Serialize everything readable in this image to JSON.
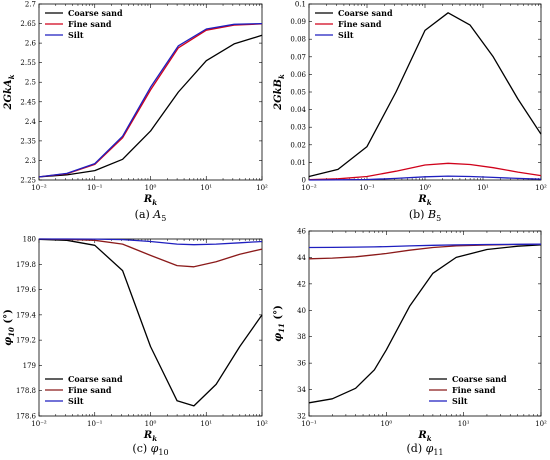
{
  "figure": {
    "legend_labels": [
      "Coarse sand",
      "Fine sand",
      "Silt"
    ],
    "series_colors": [
      "#000000",
      "#d0021b",
      "#1f1fbf"
    ]
  },
  "chart_data": [
    {
      "type": "line",
      "caption": "(a) A5",
      "xlabel": "R_k",
      "ylabel": "2GkA_k",
      "xscale": "log",
      "xlim": [
        0.01,
        100
      ],
      "ylim": [
        2.25,
        2.7
      ],
      "yticks": [
        2.25,
        2.3,
        2.35,
        2.4,
        2.45,
        2.5,
        2.55,
        2.6,
        2.65,
        2.7
      ],
      "ytick_labels": [
        "2.25",
        "2.3",
        "2.35",
        "2.4",
        "2.45",
        "2.5",
        "2.55",
        "2.6",
        "2.65",
        "2.7"
      ],
      "xticks": [
        0.01,
        0.1,
        1,
        10,
        100
      ],
      "xtick_labels": [
        "10⁻²",
        "10⁻¹",
        "10⁰",
        "10¹",
        "10²"
      ],
      "legend_position": "top-left",
      "x": [
        0.01,
        0.0316,
        0.1,
        0.316,
        1,
        3.16,
        10,
        31.6,
        100
      ],
      "series": [
        {
          "name": "Coarse sand",
          "color": "#000000",
          "values": [
            2.258,
            2.263,
            2.274,
            2.303,
            2.375,
            2.475,
            2.555,
            2.598,
            2.62
          ]
        },
        {
          "name": "Fine sand",
          "color": "#d0021b",
          "values": [
            2.258,
            2.266,
            2.29,
            2.358,
            2.48,
            2.588,
            2.633,
            2.646,
            2.649
          ]
        },
        {
          "name": "Silt",
          "color": "#1f1fbf",
          "values": [
            2.258,
            2.267,
            2.292,
            2.362,
            2.487,
            2.593,
            2.636,
            2.648,
            2.65
          ]
        }
      ]
    },
    {
      "type": "line",
      "caption": "(b) B5",
      "xlabel": "R_k",
      "ylabel": "2GkB_k",
      "xscale": "log",
      "xlim": [
        0.01,
        100
      ],
      "ylim": [
        0,
        0.1
      ],
      "yticks": [
        0,
        0.01,
        0.02,
        0.03,
        0.04,
        0.05,
        0.06,
        0.07,
        0.08,
        0.09,
        0.1
      ],
      "ytick_labels": [
        "0",
        "0.01",
        "0.02",
        "0.03",
        "0.04",
        "0.05",
        "0.06",
        "0.07",
        "0.08",
        "0.09",
        "0.1"
      ],
      "xticks": [
        0.01,
        0.1,
        1,
        10,
        100
      ],
      "xtick_labels": [
        "10⁻²",
        "10⁻¹",
        "10⁰",
        "10¹",
        "10²"
      ],
      "legend_position": "top-left",
      "x": [
        0.01,
        0.0316,
        0.1,
        0.316,
        1,
        2.5,
        6,
        15,
        40,
        100
      ],
      "series": [
        {
          "name": "Coarse sand",
          "color": "#000000",
          "values": [
            0.002,
            0.006,
            0.019,
            0.05,
            0.085,
            0.095,
            0.088,
            0.07,
            0.046,
            0.026
          ]
        },
        {
          "name": "Fine sand",
          "color": "#d0021b",
          "values": [
            0.0002,
            0.0007,
            0.002,
            0.005,
            0.0085,
            0.0095,
            0.0088,
            0.007,
            0.0045,
            0.0025
          ]
        },
        {
          "name": "Silt",
          "color": "#1f1fbf",
          "values": [
            2e-05,
            0.0001,
            0.0003,
            0.0009,
            0.0018,
            0.0022,
            0.002,
            0.0015,
            0.0009,
            0.0005
          ]
        }
      ]
    },
    {
      "type": "line",
      "caption": "(c) φ10",
      "xlabel": "R_k",
      "ylabel": "φ10 (°)",
      "xscale": "log",
      "xlim": [
        0.01,
        100
      ],
      "ylim": [
        178.6,
        180
      ],
      "yticks": [
        178.6,
        178.8,
        179,
        179.2,
        179.4,
        179.6,
        179.8,
        180
      ],
      "ytick_labels": [
        "178.6",
        "178.8",
        "179",
        "179.2",
        "179.4",
        "179.6",
        "179.8",
        "180"
      ],
      "xticks": [
        0.01,
        0.1,
        1,
        10,
        100
      ],
      "xtick_labels": [
        "10⁻²",
        "10⁻¹",
        "10⁰",
        "10¹",
        "10²"
      ],
      "legend_position": "bottom-left",
      "x": [
        0.01,
        0.0316,
        0.1,
        0.316,
        1,
        3,
        6,
        15,
        40,
        100
      ],
      "series": [
        {
          "name": "Coarse sand",
          "color": "#000000",
          "values": [
            179.998,
            179.99,
            179.95,
            179.75,
            179.15,
            178.72,
            178.68,
            178.85,
            179.15,
            179.4
          ]
        },
        {
          "name": "Fine sand",
          "color": "#8b1a1a",
          "values": [
            180.0,
            179.998,
            179.99,
            179.96,
            179.87,
            179.79,
            179.78,
            179.82,
            179.88,
            179.92
          ]
        },
        {
          "name": "Silt",
          "color": "#1f1fbf",
          "values": [
            180.0,
            180.0,
            179.999,
            179.995,
            179.98,
            179.96,
            179.955,
            179.96,
            179.97,
            179.98
          ]
        }
      ]
    },
    {
      "type": "line",
      "caption": "(d) φ11",
      "xlabel": "R_k",
      "ylabel": "φ11 (°)",
      "xscale": "log",
      "xlim": [
        0.1,
        100
      ],
      "ylim": [
        32,
        46
      ],
      "yticks": [
        32,
        34,
        36,
        38,
        40,
        42,
        44,
        46
      ],
      "ytick_labels": [
        "32",
        "34",
        "36",
        "38",
        "40",
        "42",
        "44",
        "46"
      ],
      "xticks": [
        0.1,
        1,
        10,
        100
      ],
      "xtick_labels": [
        "10⁻¹",
        "10⁰",
        "10¹",
        "10²"
      ],
      "legend_position": "bottom-right",
      "x": [
        0.1,
        0.2,
        0.4,
        0.7,
        1,
        2,
        4,
        8,
        20,
        50,
        100
      ],
      "series": [
        {
          "name": "Coarse sand",
          "color": "#000000",
          "values": [
            33.0,
            33.3,
            34.1,
            35.5,
            37.0,
            40.3,
            42.8,
            44.0,
            44.6,
            44.85,
            44.95
          ]
        },
        {
          "name": "Fine sand",
          "color": "#8b1a1a",
          "values": [
            43.9,
            43.95,
            44.05,
            44.2,
            44.3,
            44.55,
            44.75,
            44.87,
            44.94,
            44.98,
            45.0
          ]
        },
        {
          "name": "Silt",
          "color": "#1f1fbf",
          "values": [
            44.75,
            44.76,
            44.78,
            44.8,
            44.82,
            44.87,
            44.92,
            44.95,
            44.98,
            44.99,
            45.0
          ]
        }
      ]
    }
  ]
}
